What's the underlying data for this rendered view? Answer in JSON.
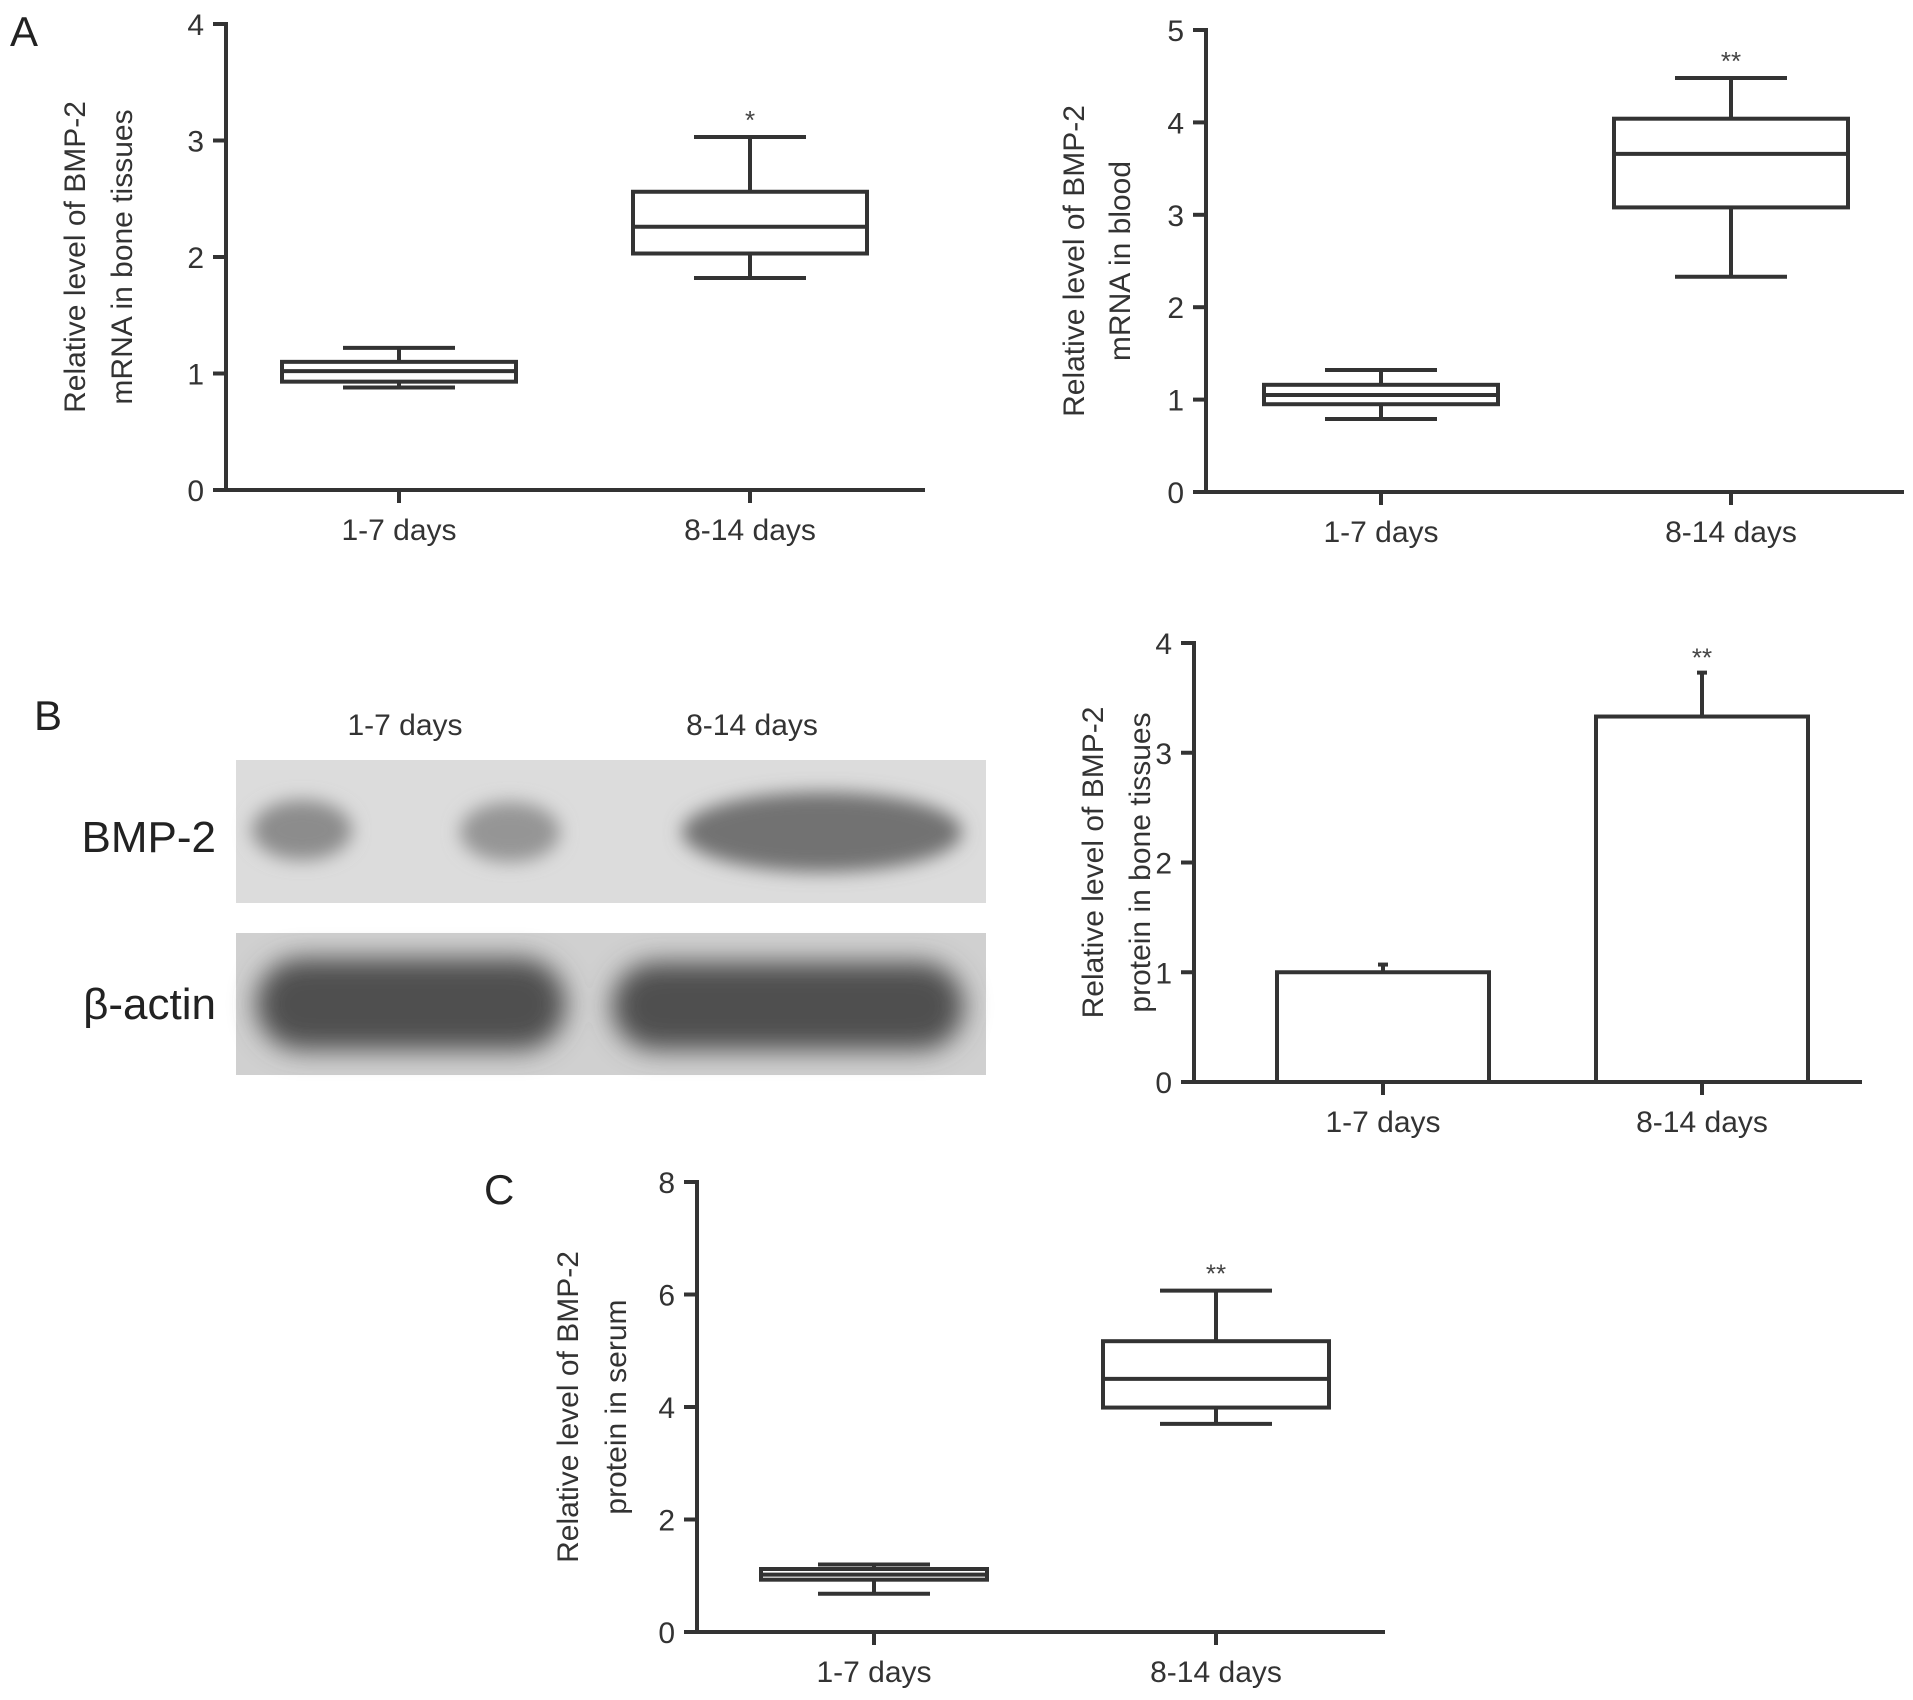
{
  "panels": {
    "a": "A",
    "b": "B",
    "c": "C"
  },
  "blot": {
    "lanes": [
      "1-7 days",
      "8-14 days"
    ],
    "rows": [
      "BMP-2",
      "β-actin"
    ]
  },
  "chart_data": [
    {
      "id": "A1",
      "type": "box",
      "categories": [
        "1-7 days",
        "8-14 days"
      ],
      "ylabel": [
        "Relative level of BMP-2",
        "mRNA in bone tissues"
      ],
      "ylim": [
        0,
        4
      ],
      "yticks": [
        0,
        1,
        2,
        3,
        4
      ],
      "boxes": [
        {
          "min": 0.88,
          "q1": 0.93,
          "median": 1.02,
          "q3": 1.1,
          "max": 1.22
        },
        {
          "min": 1.82,
          "q1": 2.03,
          "median": 2.26,
          "q3": 2.56,
          "max": 3.03
        }
      ],
      "significance": [
        "",
        "*"
      ]
    },
    {
      "id": "A2",
      "type": "box",
      "categories": [
        "1-7 days",
        "8-14 days"
      ],
      "ylabel": [
        "Relative level of BMP-2",
        "mRNA in blood"
      ],
      "ylim": [
        0,
        5
      ],
      "yticks": [
        0,
        1,
        2,
        3,
        4,
        5
      ],
      "boxes": [
        {
          "min": 0.79,
          "q1": 0.95,
          "median": 1.05,
          "q3": 1.16,
          "max": 1.32
        },
        {
          "min": 2.33,
          "q1": 3.08,
          "median": 3.66,
          "q3": 4.04,
          "max": 4.48
        }
      ],
      "significance": [
        "",
        "**"
      ]
    },
    {
      "id": "B",
      "type": "bar",
      "categories": [
        "1-7 days",
        "8-14 days"
      ],
      "ylabel": [
        "Relative level of BMP-2",
        "protein in bone tissues"
      ],
      "ylim": [
        0,
        4
      ],
      "yticks": [
        0,
        1,
        2,
        3,
        4
      ],
      "values": [
        1.0,
        3.33
      ],
      "errors": [
        0.07,
        0.4
      ],
      "significance": [
        "",
        "**"
      ]
    },
    {
      "id": "C",
      "type": "box",
      "categories": [
        "1-7 days",
        "8-14 days"
      ],
      "ylabel": [
        "Relative level of BMP-2",
        "protein in serum"
      ],
      "ylim": [
        0,
        8
      ],
      "yticks": [
        0,
        2,
        4,
        6,
        8
      ],
      "boxes": [
        {
          "min": 0.68,
          "q1": 0.93,
          "median": 1.02,
          "q3": 1.12,
          "max": 1.2
        },
        {
          "min": 3.7,
          "q1": 3.99,
          "median": 4.5,
          "q3": 5.17,
          "max": 6.07
        }
      ],
      "significance": [
        "",
        "**"
      ]
    }
  ]
}
